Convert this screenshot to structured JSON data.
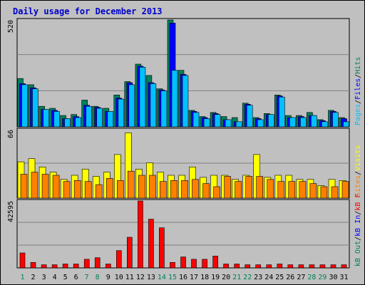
{
  "chart_data": {
    "type": "bar",
    "title": "Daily usage for December 2013",
    "categories": [
      "1",
      "2",
      "3",
      "4",
      "5",
      "6",
      "7",
      "8",
      "9",
      "10",
      "11",
      "12",
      "13",
      "14",
      "15",
      "16",
      "17",
      "18",
      "19",
      "20",
      "21",
      "22",
      "23",
      "24",
      "25",
      "26",
      "27",
      "28",
      "29",
      "30",
      "31"
    ],
    "weekend_days": [
      "1",
      "7",
      "8",
      "14",
      "15",
      "21",
      "22",
      "28",
      "29"
    ],
    "panels": [
      {
        "id": "hits-files-pages",
        "ymax": 520,
        "ymax_label": "520",
        "side_labels": [
          {
            "text": "Hits",
            "color": "#00805c"
          },
          {
            "text": "/",
            "color": "#000000"
          },
          {
            "text": "Files",
            "color": "#0000ff"
          },
          {
            "text": "/",
            "color": "#000000"
          },
          {
            "text": "Pages",
            "color": "#00c0ff"
          }
        ],
        "series": [
          {
            "name": "Hits",
            "color": "#00805c",
            "values": [
              235,
              205,
              100,
              90,
              55,
              60,
              130,
              100,
              90,
              155,
              220,
              305,
              250,
              185,
              520,
              275,
              80,
              50,
              70,
              50,
              45,
              115,
              45,
              65,
              155,
              55,
              55,
              70,
              35,
              80,
              45
            ]
          },
          {
            "name": "Files",
            "color": "#0000ff",
            "values": [
              210,
              190,
              85,
              80,
              40,
              50,
              105,
              95,
              75,
              140,
              215,
              295,
              215,
              180,
              505,
              255,
              75,
              45,
              65,
              35,
              25,
              110,
              40,
              60,
              150,
              45,
              50,
              55,
              30,
              75,
              40
            ]
          },
          {
            "name": "Pages",
            "color": "#00c0ff",
            "values": [
              205,
              185,
              85,
              75,
              40,
              45,
              100,
              90,
              75,
              135,
              205,
              290,
              210,
              175,
              275,
              250,
              70,
              40,
              60,
              35,
              25,
              105,
              35,
              60,
              145,
              45,
              45,
              55,
              25,
              70,
              25
            ]
          }
        ]
      },
      {
        "id": "visits-sites",
        "ymax": 66,
        "ymax_label": "66",
        "side_labels": [
          {
            "text": "Visits",
            "color": "#ffff00"
          },
          {
            "text": "/",
            "color": "#000000"
          },
          {
            "text": "Sites",
            "color": "#ff8000"
          }
        ],
        "series": [
          {
            "name": "Visits",
            "color": "#ffff00",
            "values": [
              35,
              38,
              30,
              25,
              18,
              22,
              28,
              21,
              25,
              42,
              63,
              28,
              34,
              25,
              22,
              22,
              30,
              20,
              22,
              22,
              18,
              22,
              42,
              20,
              22,
              22,
              18,
              18,
              12,
              18,
              17
            ]
          },
          {
            "name": "Sites",
            "color": "#ff8000",
            "values": [
              23,
              25,
              23,
              22,
              16,
              17,
              16,
              13,
              19,
              17,
              26,
              22,
              22,
              16,
              17,
              17,
              18,
              14,
              11,
              21,
              16,
              21,
              21,
              18,
              16,
              16,
              16,
              14,
              11,
              11,
              16
            ]
          }
        ]
      },
      {
        "id": "kbytes",
        "ymax": 42595,
        "ymax_label": "42595",
        "side_labels": [
          {
            "text": "KBytes",
            "color": "#ff0000"
          },
          {
            "text": "/",
            "color": "#000000"
          },
          {
            "text": "kB In",
            "color": "#0000ff"
          },
          {
            "text": "/",
            "color": "#000000"
          },
          {
            "text": "kB Out",
            "color": "#00805c"
          }
        ],
        "side_labels_visible_text": [
          "kB F",
          "/",
          "kB In",
          "/",
          "kB Out"
        ],
        "series": [
          {
            "name": "KBytes",
            "color": "#ff0000",
            "values": [
              9500,
              3500,
              2000,
              2000,
              2500,
              2500,
              5500,
              6500,
              2500,
              11000,
              19500,
              42595,
              31000,
              25500,
              3500,
              7000,
              5500,
              5500,
              7500,
              2500,
              2500,
              2000,
              2000,
              2000,
              2500,
              2000,
              2000,
              2000,
              2000,
              2000,
              2000
            ]
          }
        ]
      }
    ],
    "colors": {
      "background": "#c0c0c0",
      "weekday_label": "#000000",
      "weekend_label": "#00805c",
      "title": "#0000cc"
    }
  }
}
